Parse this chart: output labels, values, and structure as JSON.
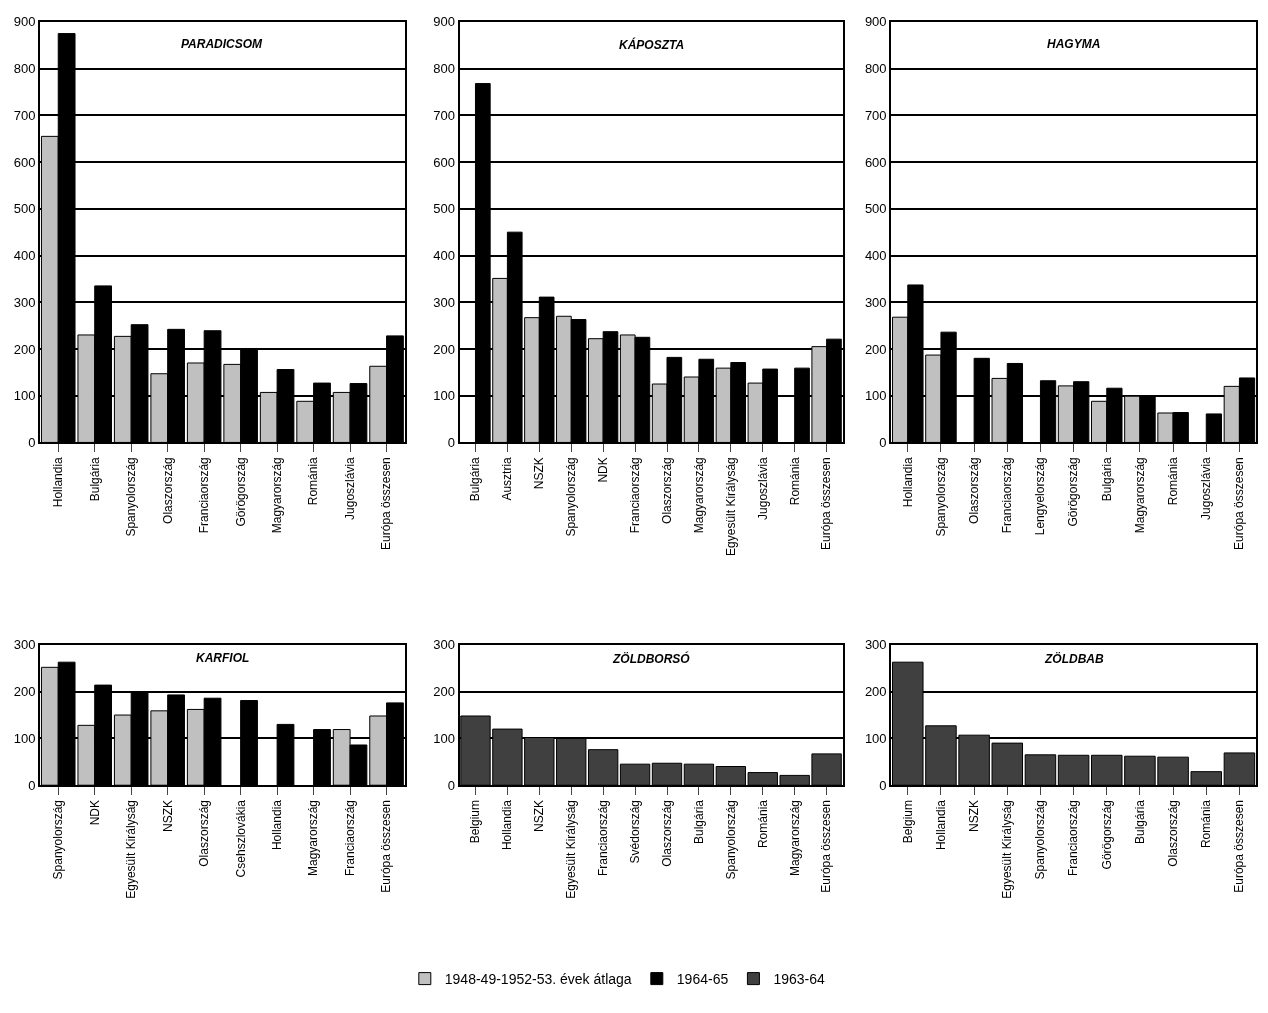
{
  "chart_data": [
    {
      "type": "bar",
      "title": "PARADICSOM",
      "categories": [
        "Hollandia",
        "Bulgária",
        "Spanyolország",
        "Olaszország",
        "Franciaország",
        "Görögország",
        "Magyarország",
        "Románia",
        "Jugoszlávia",
        "Európa összesen"
      ],
      "series": [
        {
          "name": "1948-49-1952-53. évek átlaga",
          "color": "#c0c0c0",
          "values": [
            655,
            230,
            227,
            147,
            170,
            167,
            107,
            88,
            107,
            163
          ]
        },
        {
          "name": "1964-65",
          "color": "#000000",
          "values": [
            875,
            335,
            252,
            242,
            239,
            200,
            156,
            127,
            126,
            228
          ]
        }
      ],
      "ylim": [
        0,
        900
      ],
      "yticks": [
        0,
        100,
        200,
        300,
        400,
        500,
        600,
        700,
        800,
        900
      ],
      "grid": "y",
      "legend": "bottom"
    },
    {
      "type": "bar",
      "title": "KÁPOSZTA",
      "categories": [
        "Bulgária",
        "Ausztria",
        "NSZK",
        "Spanyolország",
        "NDK",
        "Franciaország",
        "Olaszország",
        "Magyarország",
        "Egyesült Királyság",
        "Jugoszlávia",
        "Románia",
        "Európa összesen"
      ],
      "series": [
        {
          "color": "#c0c0c0",
          "values": [
            null,
            351,
            267,
            270,
            222,
            230,
            125,
            140,
            159,
            127,
            null,
            205
          ]
        },
        {
          "color": "#000000",
          "values": [
            768,
            450,
            311,
            263,
            237,
            225,
            182,
            178,
            171,
            157,
            159,
            221
          ]
        }
      ],
      "ylim": [
        0,
        900
      ],
      "yticks": [
        0,
        100,
        200,
        300,
        400,
        500,
        600,
        700,
        800,
        900
      ],
      "grid": "y"
    },
    {
      "type": "bar",
      "title": "HAGYMA",
      "categories": [
        "Hollandia",
        "Spanyolország",
        "Olaszország",
        "Franciaország",
        "Lengyelország",
        "Görögország",
        "Bulgária",
        "Magyarország",
        "Románia",
        "Jugoszlávia",
        "Európa összesen"
      ],
      "series": [
        {
          "color": "#c0c0c0",
          "values": [
            268,
            187,
            null,
            137,
            null,
            121,
            88,
            99,
            63,
            null,
            120
          ]
        },
        {
          "color": "#000000",
          "values": [
            337,
            236,
            180,
            169,
            132,
            130,
            116,
            99,
            64,
            61,
            138
          ]
        }
      ],
      "ylim": [
        0,
        900
      ],
      "yticks": [
        0,
        100,
        200,
        300,
        400,
        500,
        600,
        700,
        800,
        900
      ],
      "grid": "y"
    },
    {
      "type": "bar",
      "title": "KARFIOL",
      "categories": [
        "Spanyolország",
        "NDK",
        "Egyesült Királyság",
        "NSZK",
        "Olaszország",
        "Csehszlovákia",
        "Hollandia",
        "Magyarország",
        "Franciaország",
        "Európa összesen"
      ],
      "series": [
        {
          "color": "#c0c0c0",
          "values": [
            252,
            128,
            150,
            159,
            162,
            null,
            null,
            null,
            119,
            148
          ]
        },
        {
          "color": "#000000",
          "values": [
            263,
            214,
            200,
            193,
            186,
            181,
            130,
            119,
            86,
            176
          ]
        }
      ],
      "ylim": [
        0,
        300
      ],
      "yticks": [
        0,
        100,
        200,
        300
      ],
      "grid": "y"
    },
    {
      "type": "bar",
      "title": "ZÖLDBORSÓ",
      "categories": [
        "Belgium",
        "Hollandia",
        "NSZK",
        "Egyesült Királyság",
        "Franciaország",
        "Svédország",
        "Olaszország",
        "Bulgária",
        "Spanyolország",
        "Románia",
        "Magyarország",
        "Európa összesen"
      ],
      "series": [
        {
          "name": "1963-64",
          "color": "#404040",
          "values": [
            148,
            120,
            102,
            100,
            76,
            45,
            47,
            45,
            40,
            27,
            21,
            67
          ]
        }
      ],
      "ylim": [
        0,
        300
      ],
      "yticks": [
        0,
        100,
        200,
        300
      ],
      "grid": "y",
      "legend": "bottom"
    },
    {
      "type": "bar",
      "title": "ZÖLDBAB",
      "categories": [
        "Belgium",
        "Hollandia",
        "NSZK",
        "Egyesült Királyság",
        "Spanyolország",
        "Franciaország",
        "Görögország",
        "Bulgária",
        "Olaszország",
        "Románia",
        "Európa összesen"
      ],
      "series": [
        {
          "color": "#404040",
          "values": [
            263,
            127,
            107,
            90,
            65,
            64,
            64,
            62,
            60,
            29,
            69
          ]
        }
      ],
      "ylim": [
        0,
        300
      ],
      "yticks": [
        0,
        100,
        200,
        300
      ],
      "grid": "y"
    }
  ]
}
